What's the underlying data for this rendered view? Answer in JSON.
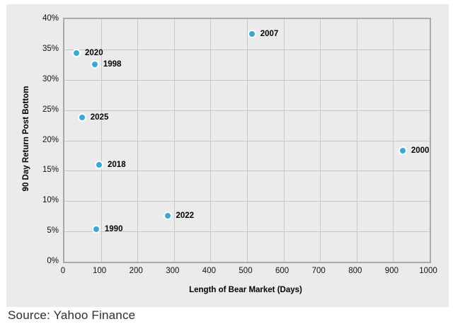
{
  "source_note": "Source: Yahoo Finance",
  "chart_data": {
    "type": "scatter",
    "title": "",
    "xlabel": "Length of Bear Market (Days)",
    "ylabel": "90 Day Return Post Bottom",
    "xlim": [
      0,
      1000
    ],
    "ylim": [
      0,
      40
    ],
    "x_ticks": [
      {
        "value": 0,
        "label": "0"
      },
      {
        "value": 100,
        "label": "100"
      },
      {
        "value": 200,
        "label": "200"
      },
      {
        "value": 300,
        "label": "300"
      },
      {
        "value": 400,
        "label": "400"
      },
      {
        "value": 500,
        "label": "500"
      },
      {
        "value": 600,
        "label": "600"
      },
      {
        "value": 700,
        "label": "700"
      },
      {
        "value": 800,
        "label": "800"
      },
      {
        "value": 900,
        "label": "900"
      },
      {
        "value": 1000,
        "label": "1000"
      }
    ],
    "y_ticks": [
      {
        "value": 0,
        "label": "0%"
      },
      {
        "value": 5,
        "label": "5%"
      },
      {
        "value": 10,
        "label": "10%"
      },
      {
        "value": 15,
        "label": "15%"
      },
      {
        "value": 20,
        "label": "20%"
      },
      {
        "value": 25,
        "label": "25%"
      },
      {
        "value": 30,
        "label": "30%"
      },
      {
        "value": 35,
        "label": "35%"
      },
      {
        "value": 40,
        "label": "40%"
      }
    ],
    "grid": true,
    "legend": "none",
    "points": [
      {
        "label": "2020",
        "x": 33,
        "y": 34.4
      },
      {
        "label": "1998",
        "x": 83,
        "y": 32.5
      },
      {
        "label": "2025",
        "x": 48,
        "y": 23.8
      },
      {
        "label": "2018",
        "x": 95,
        "y": 16.0
      },
      {
        "label": "1990",
        "x": 87,
        "y": 5.4
      },
      {
        "label": "2022",
        "x": 282,
        "y": 7.6
      },
      {
        "label": "2007",
        "x": 513,
        "y": 37.6
      },
      {
        "label": "2000",
        "x": 926,
        "y": 18.3
      }
    ],
    "colors": {
      "point_fill": "#35a9de",
      "point_halo": "#ffffff",
      "panel_bg": "#ebebeb",
      "grid_color": "#c7c7c7",
      "plot_border": "#a9a9a9",
      "text": "#000000"
    }
  }
}
